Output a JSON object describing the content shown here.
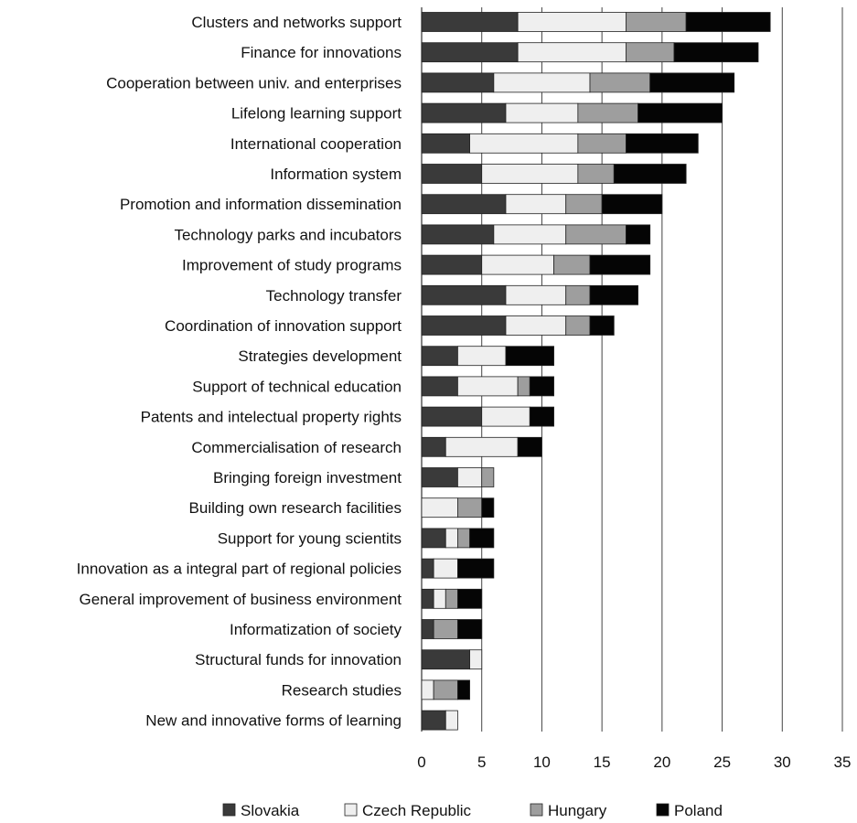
{
  "chart_data": {
    "type": "bar",
    "orientation": "horizontal",
    "stacked": true,
    "categories": [
      "Clusters and networks support",
      "Finance for innovations",
      "Cooperation between univ. and enterprises",
      "Lifelong learning support",
      "International cooperation",
      "Information system",
      "Promotion and information dissemination",
      "Technology parks and incubators",
      "Improvement  of study programs",
      "Technology transfer",
      "Coordination of innovation support",
      "Strategies development",
      "Support of technical education",
      "Patents and intelectual property rights",
      "Commercialisation of research",
      "Bringing foreign investment",
      "Building own research facilities",
      "Support for young scientits",
      "Innovation as a integral part of regional policies",
      "General improvement of business environment",
      "Informatization of society",
      "Structural funds for innovation",
      "Research studies",
      "New and innovative forms of learning"
    ],
    "series": [
      {
        "name": "Slovakia",
        "color": "#3a3a3a",
        "values": [
          8,
          8,
          6,
          7,
          4,
          5,
          7,
          6,
          5,
          7,
          7,
          3,
          3,
          5,
          2,
          3,
          0,
          2,
          1,
          1,
          1,
          4,
          0,
          2
        ]
      },
      {
        "name": "Czech  Republic",
        "color": "#efefef",
        "values": [
          9,
          9,
          8,
          6,
          9,
          8,
          5,
          6,
          6,
          5,
          5,
          4,
          5,
          4,
          6,
          2,
          3,
          1,
          2,
          1,
          0,
          1,
          1,
          1
        ]
      },
      {
        "name": "Hungary",
        "color": "#9e9e9e",
        "values": [
          5,
          4,
          5,
          5,
          4,
          3,
          3,
          5,
          3,
          2,
          2,
          0,
          1,
          0,
          0,
          1,
          2,
          1,
          0,
          1,
          2,
          0,
          2,
          0
        ]
      },
      {
        "name": "Poland",
        "color": "#050505",
        "values": [
          7,
          7,
          7,
          7,
          6,
          6,
          5,
          2,
          5,
          4,
          2,
          4,
          2,
          2,
          2,
          0,
          1,
          2,
          3,
          2,
          2,
          0,
          1,
          0
        ]
      }
    ],
    "xlim": [
      0,
      35
    ],
    "xticks": [
      "0",
      "5",
      "10",
      "15",
      "20",
      "25",
      "30",
      "35"
    ],
    "grid": "vertical",
    "legend_position": "bottom",
    "title": "",
    "xlabel": "",
    "ylabel": ""
  }
}
